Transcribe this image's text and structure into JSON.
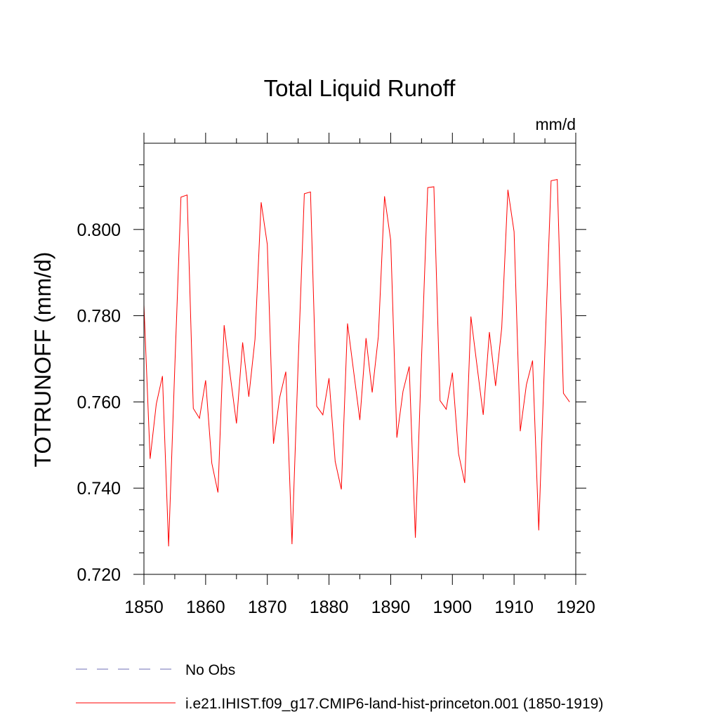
{
  "chart_data": {
    "type": "line",
    "title": "Total Liquid Runoff",
    "units": "mm/d",
    "ylabel": "TOTRUNOFF  (mm/d)",
    "xlabel": "",
    "xlim": [
      1850,
      1920
    ],
    "ylim": [
      0.72,
      0.82
    ],
    "x_ticks": [
      1850,
      1860,
      1870,
      1880,
      1890,
      1900,
      1910,
      1920
    ],
    "x_tick_labels": [
      "1850",
      "1860",
      "1870",
      "1880",
      "1890",
      "1900",
      "1910",
      "1920"
    ],
    "y_ticks": [
      0.72,
      0.74,
      0.76,
      0.78,
      0.8
    ],
    "y_tick_labels": [
      "0.720",
      "0.740",
      "0.760",
      "0.780",
      "0.800"
    ],
    "x_minor_step": 5,
    "y_minor_step": 0.005,
    "grid": false,
    "legend_placement": "bottom-left, below plot",
    "legend": [
      {
        "label": "No Obs",
        "style": "dashed",
        "color": "#6f6fb4"
      },
      {
        "label": "i.e21.IHIST.f09_g17.CMIP6-land-hist-princeton.001 (1850-1919)",
        "style": "solid",
        "color": "#ff0000"
      }
    ],
    "series": [
      {
        "color": "#ff0000",
        "x": [
          1850,
          1851,
          1852,
          1853,
          1854,
          1855,
          1856,
          1857,
          1858,
          1859,
          1860,
          1861,
          1862,
          1863,
          1864,
          1865,
          1866,
          1867,
          1868,
          1869,
          1870,
          1871,
          1872,
          1873,
          1874,
          1875,
          1876,
          1877,
          1878,
          1879,
          1880,
          1881,
          1882,
          1883,
          1884,
          1885,
          1886,
          1887,
          1888,
          1889,
          1890,
          1891,
          1892,
          1893,
          1894,
          1895,
          1896,
          1897,
          1898,
          1899,
          1900,
          1901,
          1902,
          1903,
          1904,
          1905,
          1906,
          1907,
          1908,
          1909,
          1910,
          1911,
          1912,
          1913,
          1914,
          1915,
          1916,
          1917,
          1918,
          1919
        ],
        "y": [
          0.7825,
          0.7468,
          0.7595,
          0.766,
          0.7265,
          0.768,
          0.8075,
          0.808,
          0.7585,
          0.7562,
          0.765,
          0.7458,
          0.739,
          0.7778,
          0.766,
          0.755,
          0.7738,
          0.7612,
          0.7745,
          0.8063,
          0.7965,
          0.7503,
          0.761,
          0.767,
          0.727,
          0.769,
          0.8083,
          0.8087,
          0.759,
          0.757,
          0.7655,
          0.7462,
          0.7397,
          0.7782,
          0.767,
          0.7558,
          0.7748,
          0.7622,
          0.7752,
          0.8077,
          0.7975,
          0.7517,
          0.7625,
          0.7682,
          0.7285,
          0.7702,
          0.8097,
          0.8099,
          0.7603,
          0.7583,
          0.7668,
          0.748,
          0.7412,
          0.7798,
          0.7683,
          0.757,
          0.7762,
          0.7637,
          0.7772,
          0.8092,
          0.7995,
          0.7532,
          0.764,
          0.7696,
          0.7302,
          0.772,
          0.8113,
          0.8116,
          0.762,
          0.76
        ]
      }
    ]
  }
}
